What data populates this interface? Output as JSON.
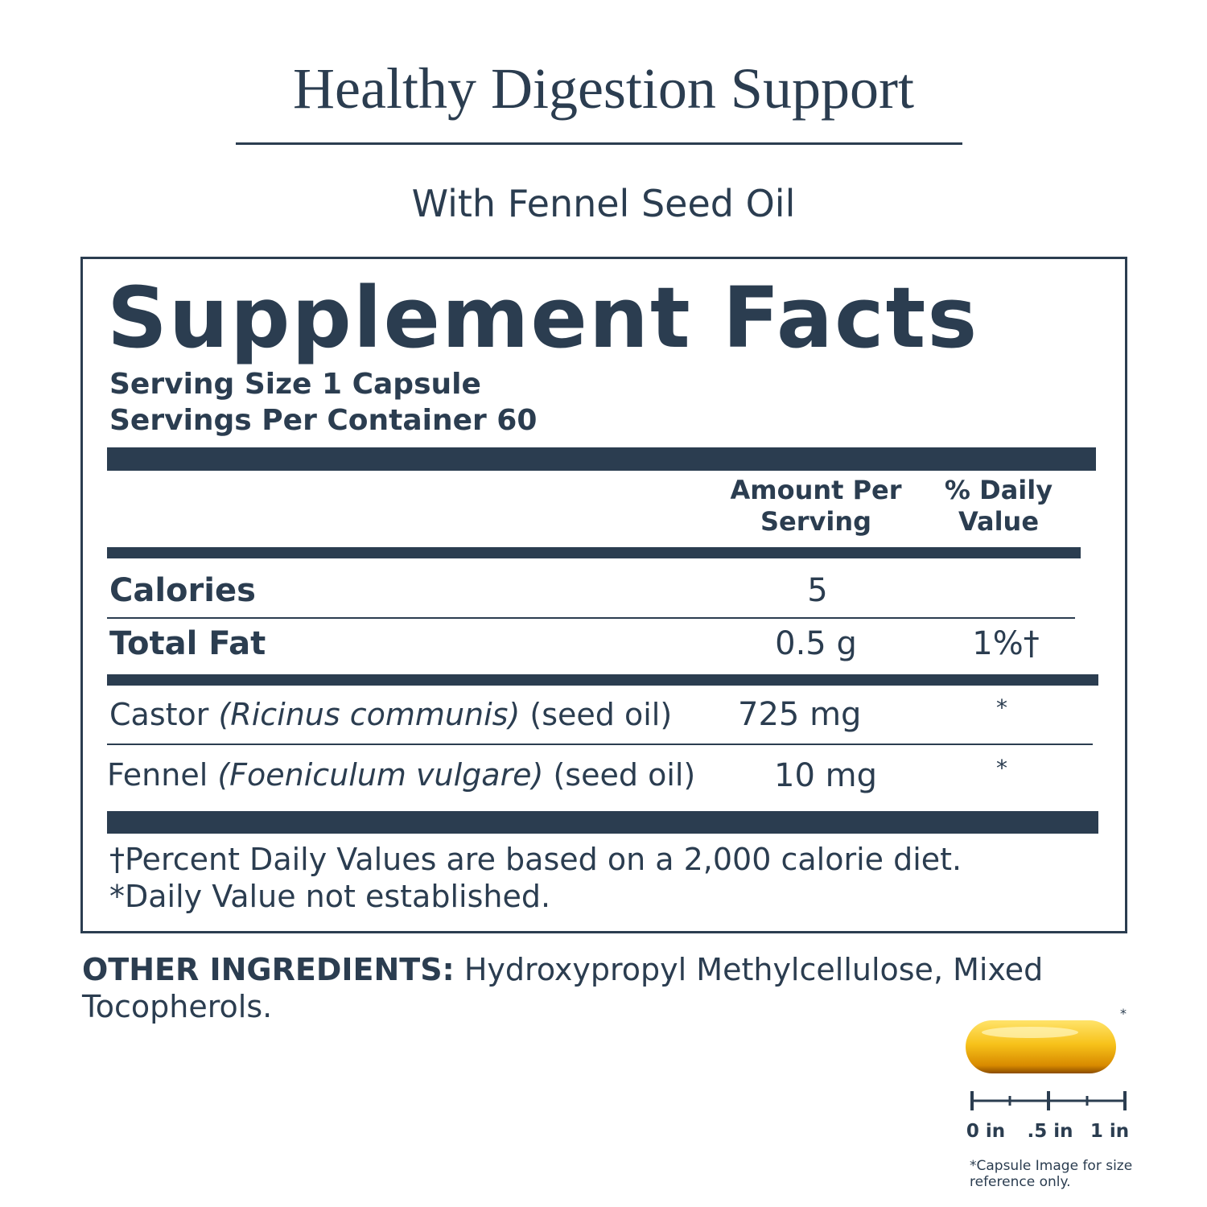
{
  "header": {
    "title": "Healthy Digestion Support",
    "subtitle": "With Fennel Seed Oil"
  },
  "facts": {
    "title": "Supplement Facts",
    "serving_size": "Serving Size 1 Capsule",
    "servings_per_container": "Servings Per Container 60",
    "columns": [
      "Amount Per Serving",
      "% Daily Value"
    ],
    "rows": [
      {
        "name": "Calories",
        "amount": "5"
      },
      {
        "name": "Total Fat",
        "amount": "0.5 g",
        "dv": "1%†"
      },
      {
        "name": "Castor",
        "latin": "(Ricinus communis)",
        "part": "(seed oil)",
        "amount": "725 mg",
        "dv": "*"
      },
      {
        "name": "Fennel",
        "latin": "(Foeniculum vulgare)",
        "part": "(seed oil)",
        "amount": "10 mg",
        "dv": "*"
      }
    ],
    "footnotes": [
      "†Percent Daily Values are based on a 2,000 calorie diet.",
      "*Daily Value not established."
    ]
  },
  "other_ingredients": {
    "label": "OTHER INGREDIENTS:",
    "text": "Hydroxypropyl Methylcellulose, Mixed Tocopherols."
  },
  "capsule": {
    "asterisk": "*",
    "scale_labels": [
      "0 in",
      ".5 in",
      "1 in"
    ],
    "note": "*Capsule Image for size reference only."
  }
}
